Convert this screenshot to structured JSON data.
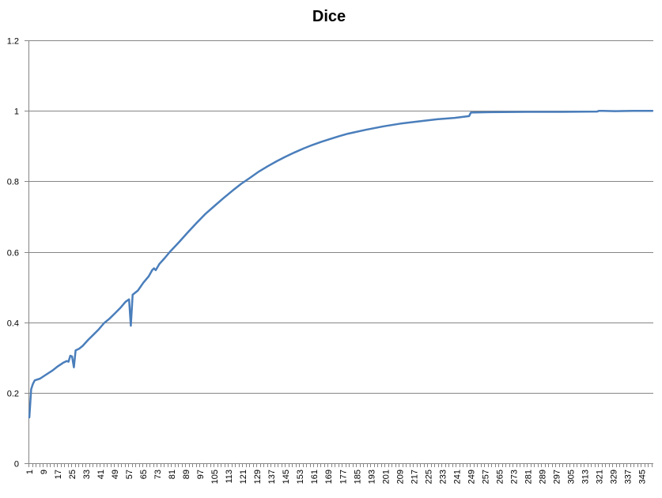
{
  "chart_data": {
    "type": "line",
    "title": "Dice",
    "xlabel": "",
    "ylabel": "",
    "ylim": [
      0,
      1.2
    ],
    "yticks": [
      "0",
      "0.2",
      "0.4",
      "0.6",
      "0.8",
      "1",
      "1.2"
    ],
    "xlim": [
      1,
      351
    ],
    "xtick_labels": [
      "1",
      "9",
      "17",
      "25",
      "33",
      "41",
      "49",
      "57",
      "65",
      "73",
      "81",
      "89",
      "97",
      "105",
      "113",
      "121",
      "129",
      "137",
      "145",
      "153",
      "161",
      "169",
      "177",
      "185",
      "193",
      "201",
      "209",
      "217",
      "225",
      "233",
      "241",
      "249",
      "257",
      "265",
      "273",
      "281",
      "289",
      "297",
      "305",
      "313",
      "321",
      "329",
      "337",
      "345"
    ],
    "grid": "horizontal",
    "legend": "none",
    "series": [
      {
        "color": "#4a7ebb",
        "points": [
          [
            1,
            0.13
          ],
          [
            2,
            0.21
          ],
          [
            3,
            0.225
          ],
          [
            4,
            0.235
          ],
          [
            7,
            0.24
          ],
          [
            10,
            0.25
          ],
          [
            14,
            0.263
          ],
          [
            17,
            0.275
          ],
          [
            20,
            0.285
          ],
          [
            22,
            0.29
          ],
          [
            23,
            0.288
          ],
          [
            24,
            0.305
          ],
          [
            25,
            0.303
          ],
          [
            26,
            0.272
          ],
          [
            27,
            0.32
          ],
          [
            29,
            0.325
          ],
          [
            31,
            0.333
          ],
          [
            34,
            0.35
          ],
          [
            37,
            0.365
          ],
          [
            40,
            0.38
          ],
          [
            43,
            0.398
          ],
          [
            46,
            0.41
          ],
          [
            49,
            0.425
          ],
          [
            52,
            0.44
          ],
          [
            55,
            0.458
          ],
          [
            57,
            0.465
          ],
          [
            58,
            0.39
          ],
          [
            59,
            0.478
          ],
          [
            62,
            0.49
          ],
          [
            65,
            0.512
          ],
          [
            68,
            0.53
          ],
          [
            70,
            0.548
          ],
          [
            71,
            0.553
          ],
          [
            72,
            0.548
          ],
          [
            74,
            0.565
          ],
          [
            77,
            0.582
          ],
          [
            80,
            0.6
          ],
          [
            85,
            0.627
          ],
          [
            90,
            0.655
          ],
          [
            95,
            0.682
          ],
          [
            100,
            0.708
          ],
          [
            105,
            0.73
          ],
          [
            110,
            0.752
          ],
          [
            115,
            0.773
          ],
          [
            120,
            0.793
          ],
          [
            125,
            0.81
          ],
          [
            130,
            0.828
          ],
          [
            135,
            0.843
          ],
          [
            140,
            0.857
          ],
          [
            145,
            0.87
          ],
          [
            150,
            0.882
          ],
          [
            155,
            0.893
          ],
          [
            160,
            0.903
          ],
          [
            165,
            0.912
          ],
          [
            170,
            0.92
          ],
          [
            175,
            0.928
          ],
          [
            180,
            0.935
          ],
          [
            190,
            0.946
          ],
          [
            200,
            0.956
          ],
          [
            210,
            0.964
          ],
          [
            220,
            0.97
          ],
          [
            230,
            0.976
          ],
          [
            240,
            0.98
          ],
          [
            248,
            0.985
          ],
          [
            249,
            0.995
          ],
          [
            260,
            0.996
          ],
          [
            280,
            0.997
          ],
          [
            300,
            0.997
          ],
          [
            320,
            0.998
          ],
          [
            321,
            1.0
          ],
          [
            330,
            0.999
          ],
          [
            340,
            1.0
          ],
          [
            351,
            1.0
          ]
        ]
      }
    ]
  }
}
